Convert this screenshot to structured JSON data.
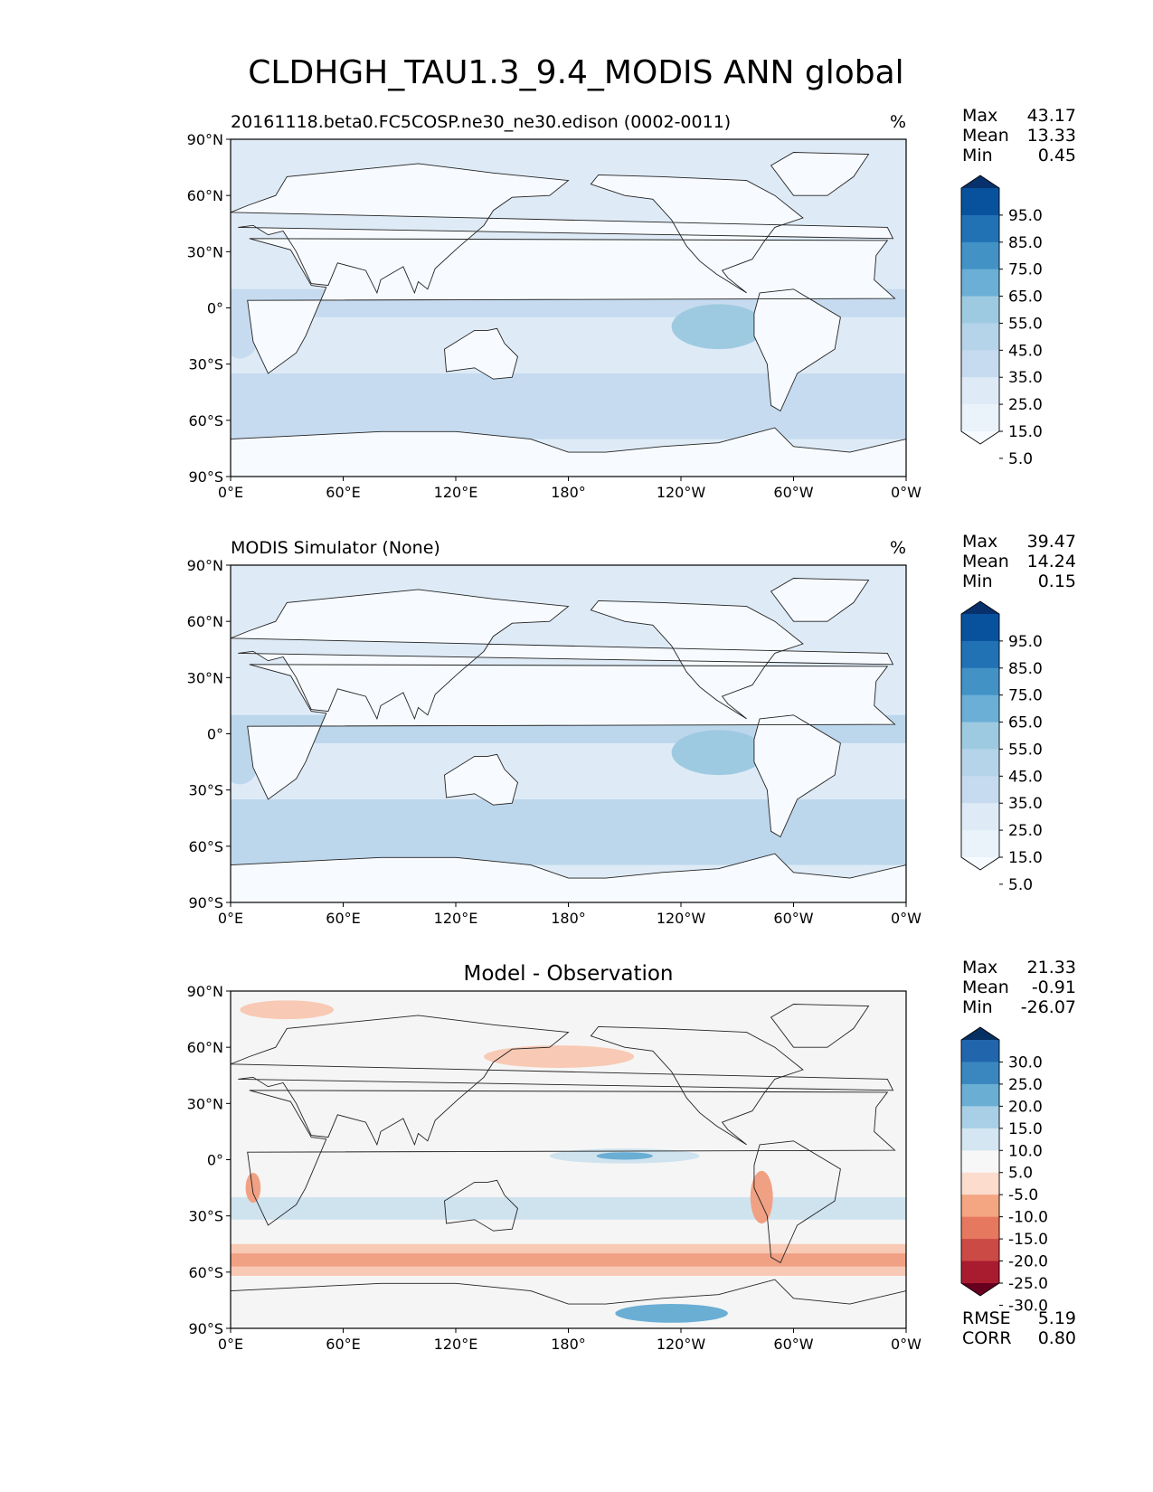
{
  "figure": {
    "title": "CLDHGH_TAU1.3_9.4_MODIS ANN global"
  },
  "panels": [
    {
      "id": "test",
      "title_left": "20161118.beta0.FC5COSP.ne30_ne30.edison (0002-0011)",
      "title_center": "",
      "units": "%",
      "stats": [
        {
          "label": "Max",
          "value": "43.17"
        },
        {
          "label": "Mean",
          "value": "13.33"
        },
        {
          "label": "Min",
          "value": "0.45"
        }
      ],
      "bottom_stats": [],
      "colorbar": {
        "ticks": [
          "95.0",
          "85.0",
          "75.0",
          "65.0",
          "55.0",
          "45.0",
          "35.0",
          "25.0",
          "15.0",
          "5.0"
        ],
        "colors": [
          "#08306b",
          "#08519c",
          "#2171b5",
          "#4292c6",
          "#6baed6",
          "#9ecae1",
          "#b5d4e9",
          "#c6dbef",
          "#deebf7",
          "#eaf2fa",
          "#f7fbff"
        ]
      },
      "field_colors": {
        "background": "#deebf7",
        "band": "#c6dbef",
        "strong": "#9ecae1",
        "land": "#f7fbff"
      }
    },
    {
      "id": "reference",
      "title_left": "MODIS Simulator (None)",
      "title_center": "",
      "units": "%",
      "stats": [
        {
          "label": "Max",
          "value": "39.47"
        },
        {
          "label": "Mean",
          "value": "14.24"
        },
        {
          "label": "Min",
          "value": "0.15"
        }
      ],
      "bottom_stats": [],
      "colorbar": {
        "ticks": [
          "95.0",
          "85.0",
          "75.0",
          "65.0",
          "55.0",
          "45.0",
          "35.0",
          "25.0",
          "15.0",
          "5.0"
        ],
        "colors": [
          "#08306b",
          "#08519c",
          "#2171b5",
          "#4292c6",
          "#6baed6",
          "#9ecae1",
          "#b5d4e9",
          "#c6dbef",
          "#deebf7",
          "#eaf2fa",
          "#f7fbff"
        ]
      },
      "field_colors": {
        "background": "#deebf7",
        "band": "#bcd6ec",
        "strong": "#9ecae1",
        "land": "#f7fbff"
      }
    },
    {
      "id": "difference",
      "title_left": "",
      "title_center": "Model - Observation",
      "units": "",
      "stats": [
        {
          "label": "Max",
          "value": "21.33"
        },
        {
          "label": "Mean",
          "value": "-0.91"
        },
        {
          "label": "Min",
          "value": "-26.07"
        }
      ],
      "bottom_stats": [
        {
          "label": "RMSE",
          "value": "5.19"
        },
        {
          "label": "CORR",
          "value": "0.80"
        }
      ],
      "colorbar": {
        "ticks": [
          "30.0",
          "25.0",
          "20.0",
          "15.0",
          "10.0",
          "5.0",
          "-5.0",
          "-10.0",
          "-15.0",
          "-20.0",
          "-25.0",
          "-30.0"
        ],
        "colors": [
          "#053061",
          "#2166ac",
          "#3a87c0",
          "#6aaed4",
          "#a8cfe5",
          "#d3e6f1",
          "#f7f7f7",
          "#fbdccd",
          "#f4a582",
          "#e6785f",
          "#cc4a46",
          "#a91c2f",
          "#67001f"
        ]
      },
      "field_colors": {
        "background": "#f5f5f5",
        "band": "#f8c9b4",
        "strong": "#f1a183",
        "land": "#f5f5f5",
        "blue": "#cfe3ef",
        "blue_strong": "#6aaed4"
      }
    }
  ],
  "axes": {
    "xticks": [
      "0°E",
      "60°E",
      "120°E",
      "180°",
      "120°W",
      "60°W",
      "0°W"
    ],
    "yticks": [
      "90°N",
      "60°N",
      "30°N",
      "0°",
      "30°S",
      "60°S",
      "90°S"
    ]
  },
  "chart_data": [
    {
      "type": "heatmap",
      "title": "20161118.beta0.FC5COSP.ne30_ne30.edison (0002-0011)",
      "units": "%",
      "x_range": [
        0,
        360
      ],
      "y_range": [
        -90,
        90
      ],
      "levels": [
        5,
        15,
        25,
        35,
        45,
        55,
        65,
        75,
        85,
        95
      ],
      "stats": {
        "max": 43.17,
        "mean": 13.33,
        "min": 0.45
      }
    },
    {
      "type": "heatmap",
      "title": "MODIS Simulator (None)",
      "units": "%",
      "x_range": [
        0,
        360
      ],
      "y_range": [
        -90,
        90
      ],
      "levels": [
        5,
        15,
        25,
        35,
        45,
        55,
        65,
        75,
        85,
        95
      ],
      "stats": {
        "max": 39.47,
        "mean": 14.24,
        "min": 0.15
      }
    },
    {
      "type": "heatmap",
      "title": "Model - Observation",
      "x_range": [
        0,
        360
      ],
      "y_range": [
        -90,
        90
      ],
      "levels": [
        -30,
        -25,
        -20,
        -15,
        -10,
        -5,
        5,
        10,
        15,
        20,
        25,
        30
      ],
      "stats": {
        "max": 21.33,
        "mean": -0.91,
        "min": -26.07,
        "rmse": 5.19,
        "corr": 0.8
      }
    }
  ]
}
